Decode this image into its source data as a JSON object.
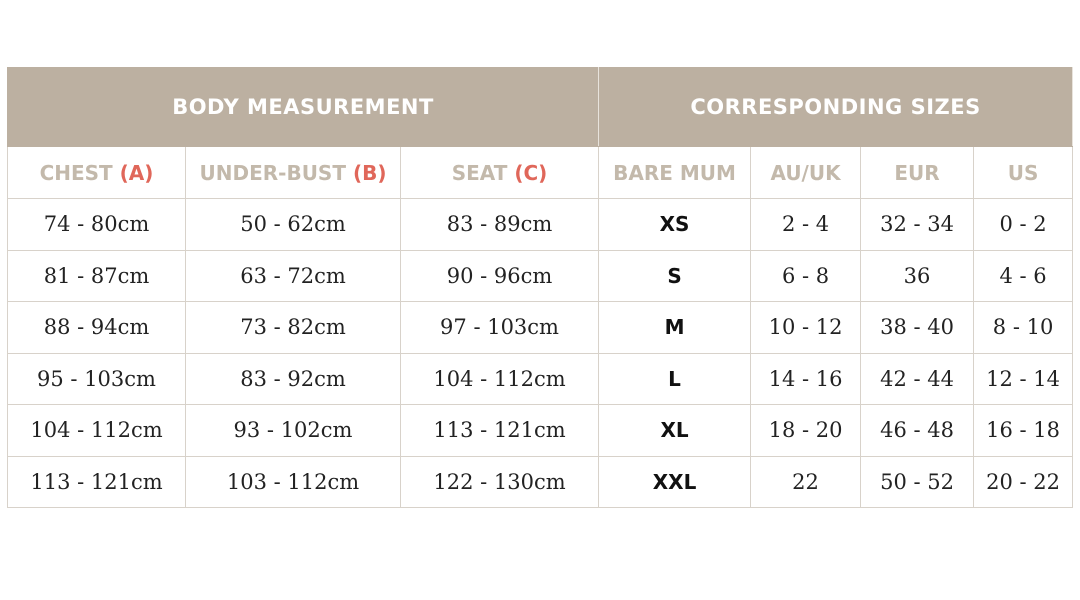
{
  "header": {
    "groups": [
      "BODY MEASUREMENT",
      "CORRESPONDING SIZES"
    ]
  },
  "columns": [
    {
      "label": "CHEST",
      "marker": "(A)"
    },
    {
      "label": "UNDER-BUST",
      "marker": "(B)"
    },
    {
      "label": "SEAT",
      "marker": "(C)"
    },
    {
      "label": "BARE MUM"
    },
    {
      "label": "AU/UK"
    },
    {
      "label": "EUR"
    },
    {
      "label": "US"
    }
  ],
  "rows": [
    [
      "74 - 80cm",
      "50 - 62cm",
      "83 - 89cm",
      "XS",
      "2 - 4",
      "32 - 34",
      "0 - 2"
    ],
    [
      "81 - 87cm",
      "63 - 72cm",
      "90 - 96cm",
      "S",
      "6 - 8",
      "36",
      "4 - 6"
    ],
    [
      "88 - 94cm",
      "73 - 82cm",
      "97 - 103cm",
      "M",
      "10 - 12",
      "38 - 40",
      "8 - 10"
    ],
    [
      "95 - 103cm",
      "83 - 92cm",
      "104 - 112cm",
      "L",
      "14 - 16",
      "42 - 44",
      "12 - 14"
    ],
    [
      "104 - 112cm",
      "93 - 102cm",
      "113 - 121cm",
      "XL",
      "18 - 20",
      "46 - 48",
      "16 - 18"
    ],
    [
      "113 - 121cm",
      "103 - 112cm",
      "122 - 130cm",
      "XXL",
      "22",
      "50 - 52",
      "20 - 22"
    ]
  ]
}
